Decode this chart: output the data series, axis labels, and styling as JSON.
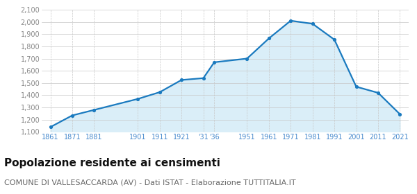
{
  "years": [
    1861,
    1871,
    1881,
    1901,
    1911,
    1921,
    1931,
    1936,
    1951,
    1961,
    1971,
    1981,
    1991,
    2001,
    2011,
    2021
  ],
  "x_labels": [
    "1861",
    "1871",
    "1881",
    "1901",
    "1911",
    "1921",
    "'31",
    "'36",
    "1951",
    "1961",
    "1971",
    "1981",
    "1991",
    "2001",
    "2011",
    "2021"
  ],
  "population": [
    1140,
    1235,
    1280,
    1370,
    1425,
    1525,
    1540,
    1670,
    1700,
    1865,
    2010,
    1985,
    1855,
    1470,
    1420,
    1245
  ],
  "line_color": "#1a7abf",
  "fill_color": "#daeef8",
  "marker_color": "#1a7abf",
  "bg_color": "#ffffff",
  "grid_color_h": "#c8c8c8",
  "grid_color_v": "#c8c8c8",
  "ylim_min": 1100,
  "ylim_max": 2100,
  "yticks": [
    1100,
    1200,
    1300,
    1400,
    1500,
    1600,
    1700,
    1800,
    1900,
    2000,
    2100
  ],
  "ytick_labels": [
    "1,100",
    "1,200",
    "1,300",
    "1,400",
    "1,500",
    "1,600",
    "1,700",
    "1,800",
    "1,900",
    "2,000",
    "2,100"
  ],
  "title": "Popolazione residente ai censimenti",
  "subtitle": "COMUNE DI VALLESACCARDA (AV) - Dati ISTAT - Elaborazione TUTTITALIA.IT",
  "title_fontsize": 11,
  "subtitle_fontsize": 8,
  "tick_fontsize": 7,
  "xtick_color": "#4488cc",
  "ytick_color": "#888888"
}
